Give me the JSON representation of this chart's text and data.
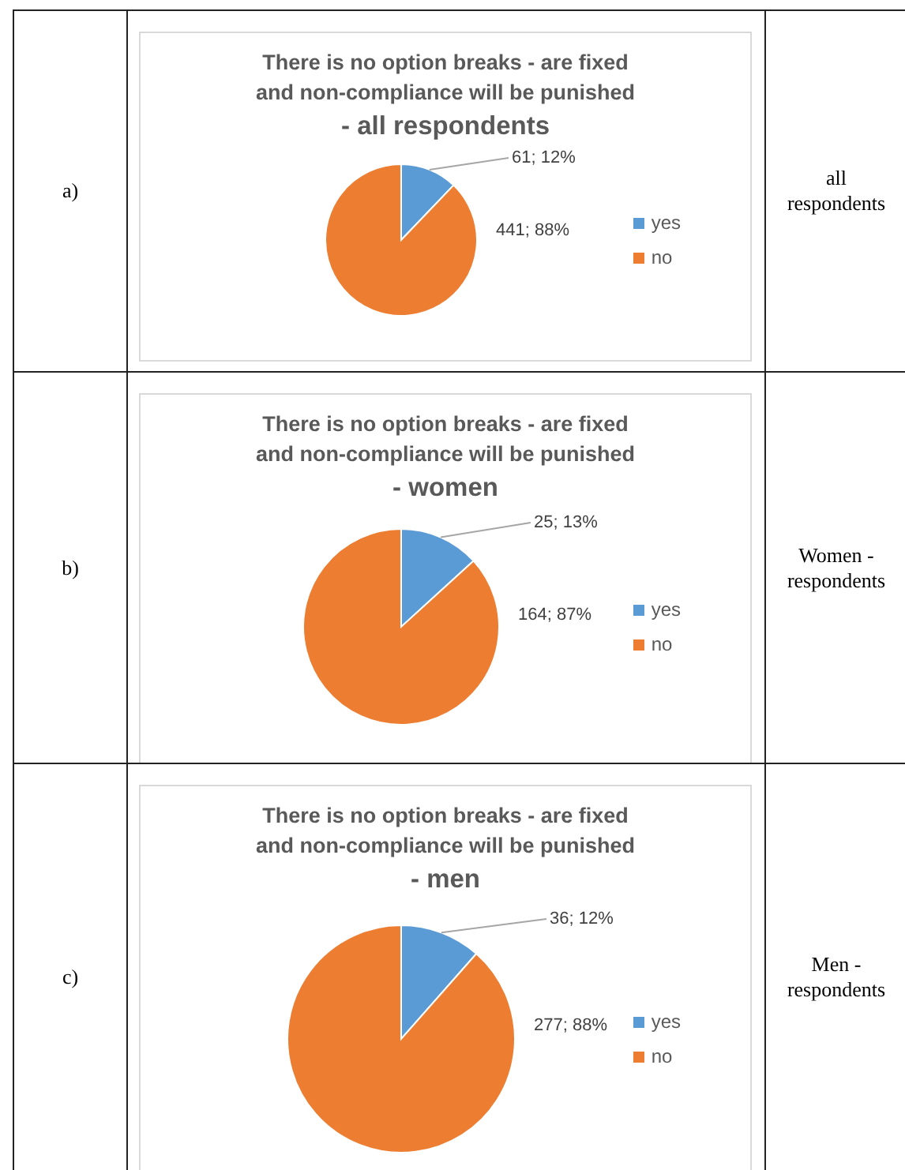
{
  "chart_data": [
    {
      "type": "pie",
      "title": "There is no option breaks - are fixed and non-compliance will be punished",
      "subtitle": "- all respondents",
      "categories": [
        "yes",
        "no"
      ],
      "values": [
        61,
        441
      ],
      "colors": [
        "#5b9bd5",
        "#ed7d31"
      ],
      "value_labels": [
        "61; 12%",
        "441; 88%"
      ],
      "legend": "right",
      "annotations": [
        "a)",
        "all respondents"
      ]
    },
    {
      "type": "pie",
      "title": "There is no option breaks - are fixed and non-compliance will be punished",
      "subtitle": "- women",
      "categories": [
        "yes",
        "no"
      ],
      "values": [
        25,
        164
      ],
      "colors": [
        "#5b9bd5",
        "#ed7d31"
      ],
      "value_labels": [
        "25; 13%",
        "164; 87%"
      ],
      "legend": "right",
      "annotations": [
        "b)",
        "Women - respondents"
      ]
    },
    {
      "type": "pie",
      "title": "There is no option breaks - are fixed and non-compliance will be punished",
      "subtitle": "- men",
      "categories": [
        "yes",
        "no"
      ],
      "values": [
        36,
        277
      ],
      "colors": [
        "#5b9bd5",
        "#ed7d31"
      ],
      "value_labels": [
        "36; 12%",
        "277; 88%"
      ],
      "legend": "right",
      "annotations": [
        "c)",
        "Men - respondents"
      ]
    }
  ]
}
